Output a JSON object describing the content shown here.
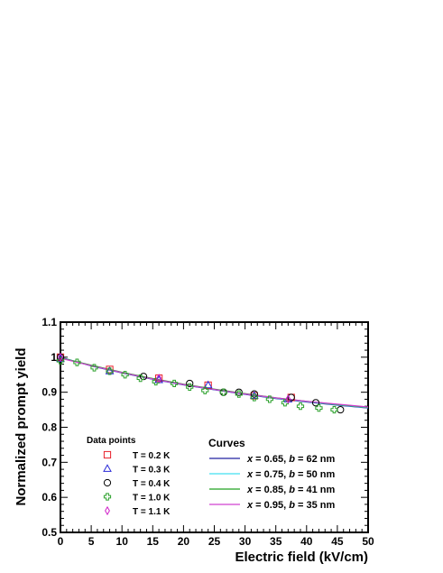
{
  "chart_data": {
    "type": "scatter",
    "xlabel": "Electric field (kV/cm)",
    "ylabel": "Normalized prompt yield",
    "xlim": [
      0,
      50
    ],
    "ylim": [
      0.5,
      1.1
    ],
    "x_ticks": [
      "0",
      "5",
      "10",
      "15",
      "20",
      "25",
      "30",
      "35",
      "40",
      "45",
      "50"
    ],
    "y_ticks": [
      "0.5",
      "0.6",
      "0.7",
      "0.8",
      "0.9",
      "1",
      "1.1"
    ],
    "grid": false,
    "points_legend_title": "Data points",
    "curves_legend_title": "Curves",
    "series": [
      {
        "name": "T = 0.2 K",
        "marker": "square",
        "color": "#e8202a",
        "points": [
          [
            0,
            1.0
          ],
          [
            8,
            0.965
          ],
          [
            16,
            0.94
          ],
          [
            24,
            0.92
          ],
          [
            31.5,
            0.89
          ],
          [
            37.5,
            0.885
          ]
        ]
      },
      {
        "name": "T = 0.3 K",
        "marker": "triangle",
        "color": "#2a2ad8",
        "points": [
          [
            0,
            0.995
          ],
          [
            8,
            0.96
          ],
          [
            16,
            0.935
          ],
          [
            24,
            0.92
          ],
          [
            31.5,
            0.89
          ],
          [
            37,
            0.88
          ]
        ]
      },
      {
        "name": "T = 0.4 K",
        "marker": "circle",
        "color": "#000000",
        "points": [
          [
            0,
            1.0
          ],
          [
            13.5,
            0.945
          ],
          [
            21,
            0.925
          ],
          [
            26.5,
            0.9
          ],
          [
            29,
            0.9
          ],
          [
            31.5,
            0.895
          ],
          [
            37.5,
            0.885
          ],
          [
            41.5,
            0.87
          ],
          [
            45.5,
            0.85
          ]
        ]
      },
      {
        "name": "T = 1.0 K",
        "marker": "cross",
        "color": "#2aa02a",
        "points": [
          [
            0,
            0.99
          ],
          [
            2.7,
            0.985
          ],
          [
            5.5,
            0.97
          ],
          [
            8,
            0.96
          ],
          [
            10.5,
            0.95
          ],
          [
            13,
            0.94
          ],
          [
            15.5,
            0.93
          ],
          [
            18.5,
            0.925
          ],
          [
            21,
            0.915
          ],
          [
            23.5,
            0.905
          ],
          [
            26.5,
            0.9
          ],
          [
            29,
            0.895
          ],
          [
            31.5,
            0.885
          ],
          [
            34,
            0.88
          ],
          [
            36.5,
            0.87
          ],
          [
            39,
            0.86
          ],
          [
            42,
            0.855
          ],
          [
            44.5,
            0.85
          ]
        ]
      },
      {
        "name": "T = 1.1 K",
        "marker": "diamond",
        "color": "#d020c8",
        "points": [
          [
            0,
            1.0
          ],
          [
            16,
            0.94
          ],
          [
            37,
            0.88
          ]
        ]
      }
    ],
    "curves": [
      {
        "name": "x = 0.65, b = 62 nm",
        "name_parts": [
          "x",
          " = 0.65, ",
          "b",
          " = 62 nm"
        ],
        "color": "#2020a0",
        "points": [
          [
            0,
            1.0
          ],
          [
            5,
            0.975
          ],
          [
            10,
            0.955
          ],
          [
            15,
            0.937
          ],
          [
            20,
            0.921
          ],
          [
            25,
            0.907
          ],
          [
            30,
            0.894
          ],
          [
            35,
            0.882
          ],
          [
            40,
            0.872
          ],
          [
            45,
            0.863
          ],
          [
            50,
            0.855
          ]
        ]
      },
      {
        "name": "x = 0.75, b = 50 nm",
        "name_parts": [
          "x",
          " = 0.75, ",
          "b",
          " = 50 nm"
        ],
        "color": "#40e0f0",
        "points": [
          [
            0,
            0.999
          ],
          [
            5,
            0.976
          ],
          [
            10,
            0.956
          ],
          [
            15,
            0.938
          ],
          [
            20,
            0.922
          ],
          [
            25,
            0.908
          ],
          [
            30,
            0.895
          ],
          [
            35,
            0.883
          ],
          [
            40,
            0.873
          ],
          [
            45,
            0.864
          ],
          [
            50,
            0.856
          ]
        ]
      },
      {
        "name": "x = 0.85, b = 41 nm",
        "name_parts": [
          "x",
          " = 0.85, ",
          "b",
          " = 41 nm"
        ],
        "color": "#20a020",
        "points": [
          [
            0,
            0.998
          ],
          [
            5,
            0.977
          ],
          [
            10,
            0.957
          ],
          [
            15,
            0.939
          ],
          [
            20,
            0.923
          ],
          [
            25,
            0.909
          ],
          [
            30,
            0.896
          ],
          [
            35,
            0.884
          ],
          [
            40,
            0.874
          ],
          [
            45,
            0.865
          ],
          [
            50,
            0.857
          ]
        ]
      },
      {
        "name": "x = 0.95, b = 35 nm",
        "name_parts": [
          "x",
          " = 0.95, ",
          "b",
          " = 35 nm"
        ],
        "color": "#d040d0",
        "points": [
          [
            0,
            0.997
          ],
          [
            5,
            0.976
          ],
          [
            10,
            0.956
          ],
          [
            15,
            0.938
          ],
          [
            20,
            0.922
          ],
          [
            25,
            0.908
          ],
          [
            30,
            0.895
          ],
          [
            35,
            0.884
          ],
          [
            40,
            0.874
          ],
          [
            45,
            0.866
          ],
          [
            50,
            0.858
          ]
        ]
      }
    ]
  }
}
